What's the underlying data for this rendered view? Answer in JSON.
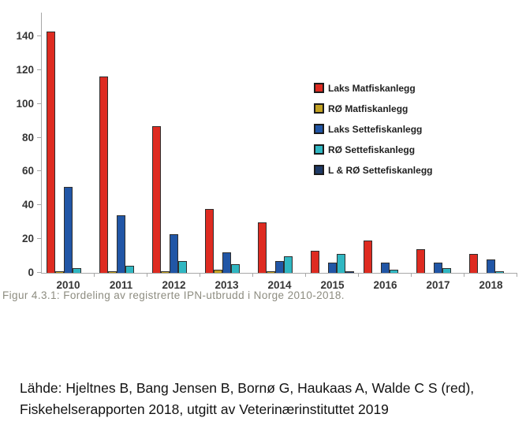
{
  "figure": {
    "caption": "Figur 4.3.1: Fordeling av registrerte IPN-utbrudd i Norge 2010-2018.",
    "source_line1": "Lähde: Hjeltnes B, Bang Jensen B, Bornø G, Haukaas A, Walde C S (red),",
    "source_line2": "Fiskehelserapporten 2018, utgitt av Veterinærinstituttet 2019"
  },
  "chart_data": {
    "type": "bar",
    "title": "",
    "xlabel": "",
    "ylabel": "",
    "grid": false,
    "legend_position": "upper right",
    "ylim": [
      0,
      154
    ],
    "y_ticks": [
      0,
      20,
      40,
      60,
      80,
      100,
      120,
      140
    ],
    "categories": [
      "2010",
      "2011",
      "2012",
      "2013",
      "2014",
      "2015",
      "2016",
      "2017",
      "2018"
    ],
    "series": [
      {
        "name": "Laks Matfiskanlegg",
        "color": "#de2b21",
        "values": [
          143,
          116,
          87,
          38,
          30,
          13,
          19,
          14,
          11
        ]
      },
      {
        "name": "RØ Matfiskanlegg",
        "color": "#c2a122",
        "values": [
          1,
          1,
          1,
          2,
          1,
          0,
          0,
          0,
          0
        ]
      },
      {
        "name": "Laks Settefiskanlegg",
        "color": "#2156a6",
        "values": [
          51,
          34,
          23,
          12,
          7,
          6,
          6,
          6,
          8
        ]
      },
      {
        "name": "RØ Settefiskanlegg",
        "color": "#30b7c2",
        "values": [
          3,
          4,
          7,
          5,
          10,
          11,
          2,
          3,
          1
        ]
      },
      {
        "name": "L & RØ Settefiskanlegg",
        "color": "#1f3a66",
        "values": [
          0,
          0,
          0,
          0,
          0,
          1,
          0,
          0,
          0
        ]
      }
    ]
  }
}
